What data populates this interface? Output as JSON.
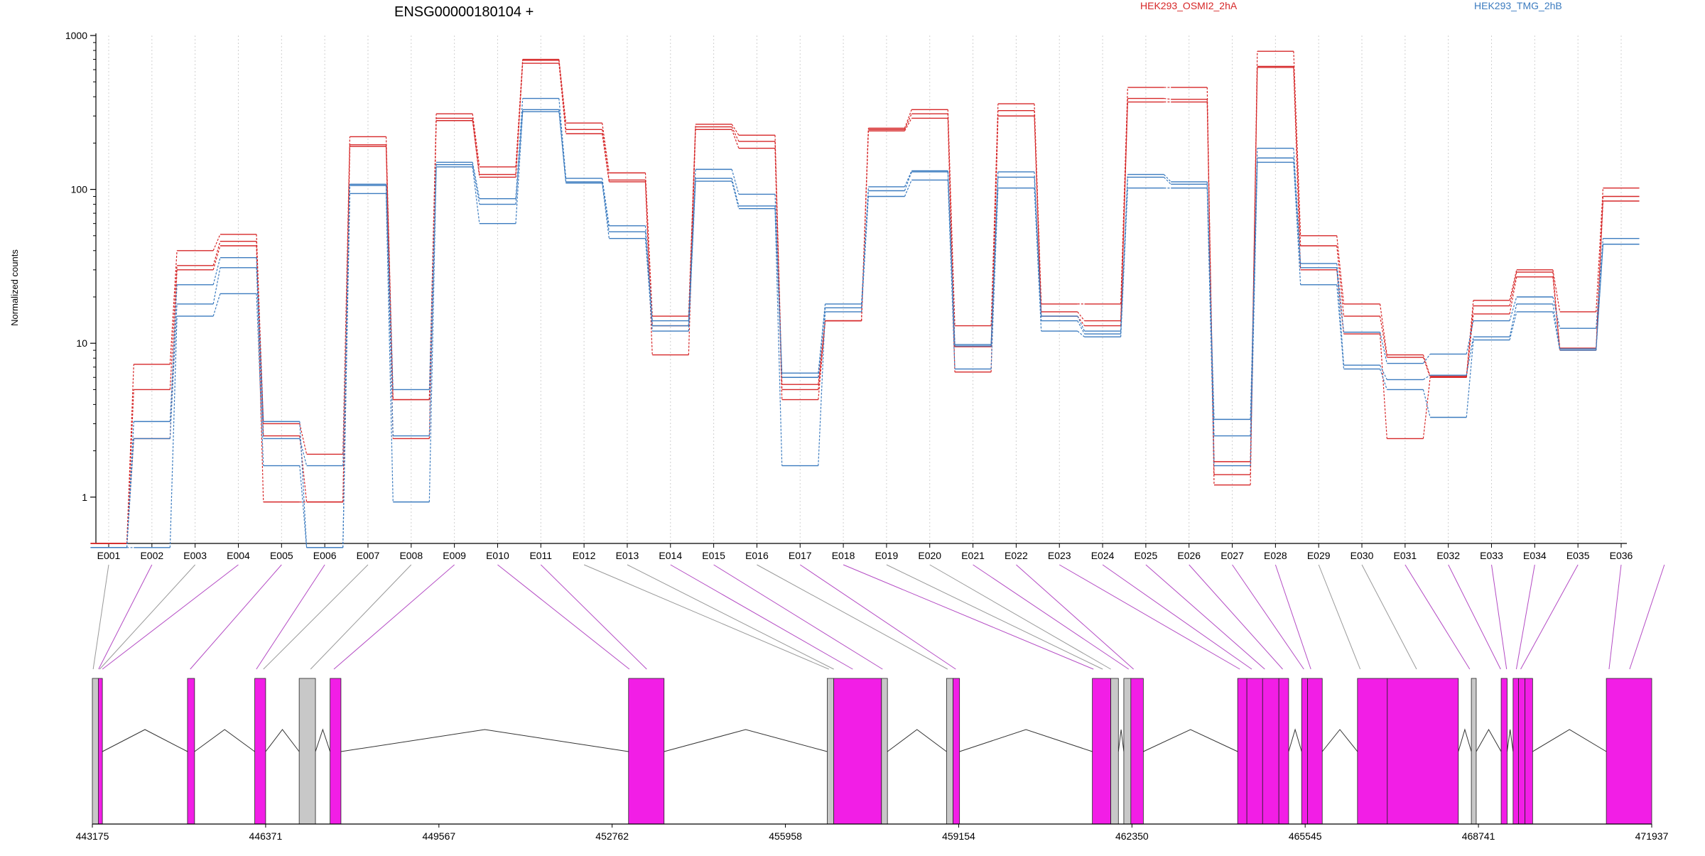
{
  "chart_data": {
    "type": "line",
    "title": "ENSG00000180104 +",
    "ylabel": "Normalized counts",
    "yscale": "log",
    "ylim": [
      0.5,
      1000
    ],
    "yticks": [
      "1",
      "10",
      "100",
      "1000"
    ],
    "grid": "vertical",
    "legend": {
      "placement": "top-right",
      "entries": [
        {
          "name": "HEK293_OSMI2_2hA",
          "color": "#d62728"
        },
        {
          "name": "HEK293_TMG_2hB",
          "color": "#3b7bbf"
        }
      ]
    },
    "categories": [
      "E001",
      "E002",
      "E003",
      "E004",
      "E005",
      "E006",
      "E007",
      "E008",
      "E009",
      "E010",
      "E011",
      "E012",
      "E013",
      "E014",
      "E015",
      "E016",
      "E017",
      "E018",
      "E019",
      "E020",
      "E021",
      "E022",
      "E023",
      "E024",
      "E025",
      "E026",
      "E027",
      "E028",
      "E029",
      "E030",
      "E031",
      "E032",
      "E033",
      "E034",
      "E035",
      "E036"
    ],
    "series": [
      {
        "group": "HEK293_OSMI2_2hA",
        "values": [
          0.5,
          7.3,
          40,
          51,
          3.0,
          1.9,
          220,
          4.3,
          310,
          140,
          700,
          270,
          128,
          15,
          265,
          225,
          5.4,
          14,
          250,
          330,
          13,
          360,
          18,
          18,
          460,
          460,
          1.2,
          790,
          50,
          18,
          8.4,
          6.1,
          19,
          30,
          16,
          102
        ]
      },
      {
        "group": "HEK293_OSMI2_2hA",
        "values": [
          0.5,
          5.0,
          32,
          46,
          2.5,
          0.93,
          195,
          4.3,
          290,
          125,
          690,
          245,
          115,
          13,
          255,
          205,
          5.0,
          14,
          245,
          310,
          9.5,
          325,
          16,
          14,
          390,
          385,
          1.4,
          630,
          43,
          15,
          8.1,
          6.0,
          17.5,
          29,
          9.3,
          90
        ]
      },
      {
        "group": "HEK293_OSMI2_2hA",
        "values": [
          0.5,
          2.4,
          30,
          43,
          0.93,
          0.93,
          190,
          2.4,
          280,
          120,
          660,
          230,
          112,
          8.4,
          245,
          185,
          4.3,
          14,
          240,
          290,
          6.5,
          300,
          15,
          13,
          370,
          370,
          1.7,
          620,
          30,
          11.5,
          2.4,
          6.0,
          15.5,
          27,
          9.0,
          84
        ]
      },
      {
        "group": "HEK293_TMG_2hB",
        "values": [
          0.47,
          3.1,
          24,
          36,
          3.1,
          0.47,
          108,
          5.0,
          150,
          87,
          390,
          118,
          58,
          14,
          135,
          93,
          6.4,
          18,
          104,
          132,
          9.8,
          130,
          15,
          12,
          125,
          112,
          3.2,
          185,
          33,
          11.8,
          7.4,
          8.5,
          14,
          20,
          12.5,
          48
        ]
      },
      {
        "group": "HEK293_TMG_2hB",
        "values": [
          0.47,
          2.4,
          18,
          31,
          2.4,
          1.6,
          106,
          2.5,
          145,
          80,
          330,
          112,
          53,
          13,
          118,
          78,
          6.0,
          17,
          98,
          130,
          9.6,
          120,
          14,
          11.5,
          120,
          108,
          2.5,
          160,
          31,
          7.2,
          5.8,
          6.2,
          11,
          18,
          9.2,
          44
        ]
      },
      {
        "group": "HEK293_TMG_2hB",
        "values": [
          0.47,
          0.47,
          15,
          21,
          1.6,
          0.47,
          94,
          0.93,
          140,
          60,
          320,
          110,
          48,
          12,
          113,
          75,
          1.6,
          16,
          90,
          115,
          6.8,
          102,
          12,
          11,
          102,
          102,
          1.6,
          150,
          24,
          6.8,
          5.0,
          3.3,
          10.5,
          16,
          9.0,
          44
        ]
      }
    ],
    "genome_axis": {
      "ticks": [
        "443175",
        "446371",
        "449567",
        "452762",
        "455958",
        "459154",
        "462350",
        "465545",
        "468741",
        "471937"
      ],
      "min": 443175,
      "max": 471937,
      "exons": [
        [
          443175,
          443285,
          "gray"
        ],
        [
          443285,
          443360,
          "magenta"
        ],
        [
          444930,
          445060,
          "magenta"
        ],
        [
          446170,
          446371,
          "magenta"
        ],
        [
          446990,
          447290,
          "gray"
        ],
        [
          447560,
          447760,
          "magenta"
        ],
        [
          453065,
          453720,
          "magenta"
        ],
        [
          456730,
          456850,
          "gray"
        ],
        [
          456850,
          457730,
          "magenta"
        ],
        [
          457730,
          457840,
          "gray"
        ],
        [
          458930,
          459050,
          "gray"
        ],
        [
          459050,
          459170,
          "magenta"
        ],
        [
          461620,
          461960,
          "magenta"
        ],
        [
          461960,
          462100,
          "gray"
        ],
        [
          462200,
          462330,
          "gray"
        ],
        [
          462330,
          462560,
          "magenta"
        ],
        [
          464300,
          464470,
          "magenta"
        ],
        [
          464470,
          464760,
          "magenta"
        ],
        [
          464760,
          465060,
          "magenta"
        ],
        [
          465060,
          465240,
          "magenta"
        ],
        [
          465480,
          465590,
          "magenta"
        ],
        [
          465590,
          465860,
          "magenta"
        ],
        [
          466510,
          467060,
          "magenta"
        ],
        [
          467060,
          468370,
          "magenta"
        ],
        [
          468610,
          468700,
          "gray"
        ],
        [
          469160,
          469270,
          "magenta"
        ],
        [
          469380,
          469480,
          "magenta"
        ],
        [
          469480,
          469600,
          "magenta"
        ],
        [
          469600,
          469740,
          "magenta"
        ],
        [
          471100,
          471937,
          "magenta"
        ]
      ],
      "connector_targets": [
        443190,
        443290,
        443310,
        443360,
        444980,
        446200,
        446330,
        447200,
        447630,
        453080,
        453400,
        456760,
        456850,
        457200,
        457750,
        458950,
        459100,
        461640,
        461810,
        461960,
        462290,
        462380,
        464340,
        464560,
        464800,
        465130,
        465520,
        465650,
        466560,
        467600,
        468580,
        469150,
        469260,
        469440,
        469520,
        471150,
        471530
      ],
      "connector_colors": [
        "gray",
        "magenta",
        "gray",
        "magenta",
        "magenta",
        "magenta",
        "gray",
        "gray",
        "magenta",
        "magenta",
        "magenta",
        "gray",
        "gray",
        "magenta",
        "magenta",
        "gray",
        "magenta",
        "magenta",
        "gray",
        "gray",
        "magenta",
        "magenta",
        "magenta",
        "magenta",
        "magenta",
        "magenta",
        "magenta",
        "magenta",
        "gray",
        "gray",
        "magenta",
        "magenta",
        "magenta",
        "magenta",
        "magenta",
        "magenta",
        "magenta"
      ]
    }
  }
}
